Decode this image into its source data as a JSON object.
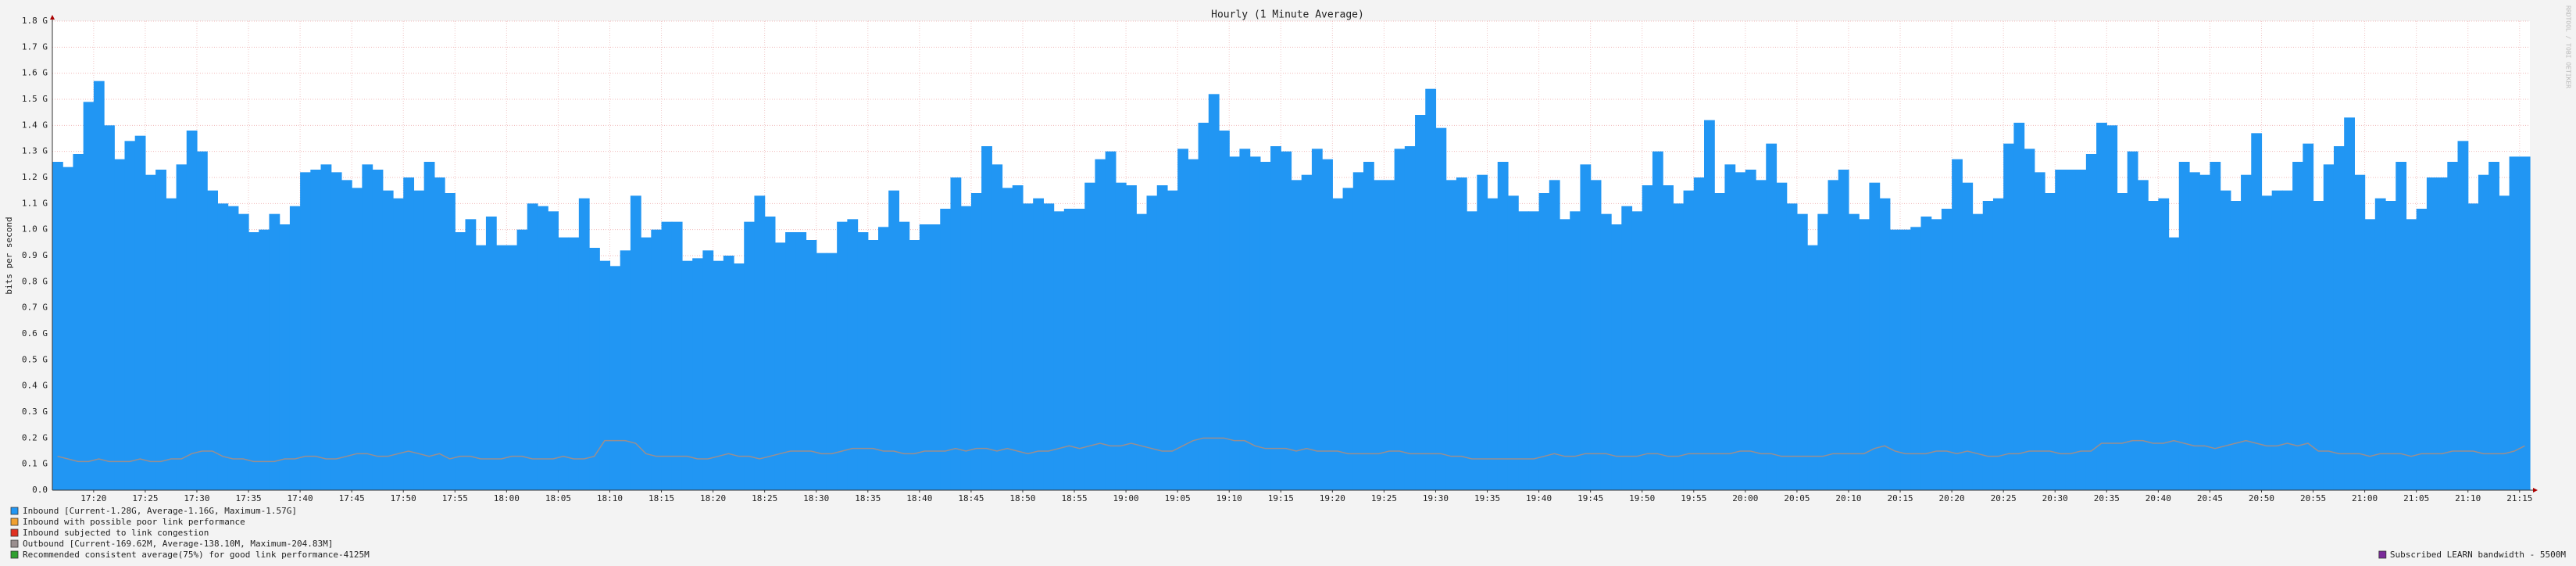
{
  "chart_data": {
    "type": "step-area",
    "title": "Hourly (1 Minute Average)",
    "y_label": "bits per second",
    "watermark": "RRDTOOL / TOBI OETIKER",
    "x": [
      "17:16",
      "17:17",
      "17:18",
      "17:19",
      "17:20",
      "17:21",
      "17:22",
      "17:23",
      "17:24",
      "17:25",
      "17:26",
      "17:27",
      "17:28",
      "17:29",
      "17:30",
      "17:31",
      "17:32",
      "17:33",
      "17:34",
      "17:35",
      "17:36",
      "17:37",
      "17:38",
      "17:39",
      "17:40",
      "17:41",
      "17:42",
      "17:43",
      "17:44",
      "17:45",
      "17:46",
      "17:47",
      "17:48",
      "17:49",
      "17:50",
      "17:51",
      "17:52",
      "17:53",
      "17:54",
      "17:55",
      "17:56",
      "17:57",
      "17:58",
      "17:59",
      "18:00",
      "18:01",
      "18:02",
      "18:03",
      "18:04",
      "18:05",
      "18:06",
      "18:07",
      "18:08",
      "18:09",
      "18:10",
      "18:11",
      "18:12",
      "18:13",
      "18:14",
      "18:15",
      "18:16",
      "18:17",
      "18:18",
      "18:19",
      "18:20",
      "18:21",
      "18:22",
      "18:23",
      "18:24",
      "18:25",
      "18:26",
      "18:27",
      "18:28",
      "18:29",
      "18:30",
      "18:31",
      "18:32",
      "18:33",
      "18:34",
      "18:35",
      "18:36",
      "18:37",
      "18:38",
      "18:39",
      "18:40",
      "18:41",
      "18:42",
      "18:43",
      "18:44",
      "18:45",
      "18:46",
      "18:47",
      "18:48",
      "18:49",
      "18:50",
      "18:51",
      "18:52",
      "18:53",
      "18:54",
      "18:55",
      "18:56",
      "18:57",
      "18:58",
      "18:59",
      "19:00",
      "19:01",
      "19:02",
      "19:03",
      "19:04",
      "19:05",
      "19:06",
      "19:07",
      "19:08",
      "19:09",
      "19:10",
      "19:11",
      "19:12",
      "19:13",
      "19:14",
      "19:15",
      "19:16",
      "19:17",
      "19:18",
      "19:19",
      "19:20",
      "19:21",
      "19:22",
      "19:23",
      "19:24",
      "19:25",
      "19:26",
      "19:27",
      "19:28",
      "19:29",
      "19:30",
      "19:31",
      "19:32",
      "19:33",
      "19:34",
      "19:35",
      "19:36",
      "19:37",
      "19:38",
      "19:39",
      "19:40",
      "19:41",
      "19:42",
      "19:43",
      "19:44",
      "19:45",
      "19:46",
      "19:47",
      "19:48",
      "19:49",
      "19:50",
      "19:51",
      "19:52",
      "19:53",
      "19:54",
      "19:55",
      "19:56",
      "19:57",
      "19:58",
      "19:59",
      "20:00",
      "20:01",
      "20:02",
      "20:03",
      "20:04",
      "20:05",
      "20:06",
      "20:07",
      "20:08",
      "20:09",
      "20:10",
      "20:11",
      "20:12",
      "20:13",
      "20:14",
      "20:15",
      "20:16",
      "20:17",
      "20:18",
      "20:19",
      "20:20",
      "20:21",
      "20:22",
      "20:23",
      "20:24",
      "20:25",
      "20:26",
      "20:27",
      "20:28",
      "20:29",
      "20:30",
      "20:31",
      "20:32",
      "20:33",
      "20:34",
      "20:35",
      "20:36",
      "20:37",
      "20:38",
      "20:39",
      "20:40",
      "20:41",
      "20:42",
      "20:43",
      "20:44",
      "20:45",
      "20:46",
      "20:47",
      "20:48",
      "20:49",
      "20:50",
      "20:51",
      "20:52",
      "20:53",
      "20:54",
      "20:55",
      "20:56",
      "20:57",
      "20:58",
      "20:59",
      "21:00",
      "21:01",
      "21:02",
      "21:03",
      "21:04",
      "21:05",
      "21:06",
      "21:07",
      "21:08",
      "21:09",
      "21:10",
      "21:11",
      "21:12",
      "21:13",
      "21:14",
      "21:15"
    ],
    "series": [
      {
        "name": "Inbound  [Current-1.28G,  Average-1.16G,  Maximum-1.57G]",
        "color": "#2196f3",
        "kind": "area",
        "values": [
          1.26,
          1.24,
          1.29,
          1.49,
          1.57,
          1.4,
          1.27,
          1.34,
          1.36,
          1.21,
          1.23,
          1.12,
          1.25,
          1.38,
          1.3,
          1.15,
          1.1,
          1.09,
          1.06,
          0.99,
          1.0,
          1.06,
          1.02,
          1.09,
          1.22,
          1.23,
          1.25,
          1.22,
          1.19,
          1.16,
          1.25,
          1.23,
          1.15,
          1.12,
          1.2,
          1.15,
          1.26,
          1.2,
          1.14,
          0.99,
          1.04,
          0.94,
          1.05,
          0.94,
          0.94,
          1.0,
          1.1,
          1.09,
          1.07,
          0.97,
          0.97,
          1.12,
          0.93,
          0.88,
          0.86,
          0.92,
          1.13,
          0.97,
          1.0,
          1.03,
          1.03,
          0.88,
          0.89,
          0.92,
          0.88,
          0.9,
          0.87,
          1.03,
          1.13,
          1.05,
          0.95,
          0.99,
          0.99,
          0.96,
          0.91,
          0.91,
          1.03,
          1.04,
          0.99,
          0.96,
          1.01,
          1.15,
          1.03,
          0.96,
          1.02,
          1.02,
          1.08,
          1.2,
          1.09,
          1.14,
          1.32,
          1.25,
          1.16,
          1.17,
          1.1,
          1.12,
          1.1,
          1.07,
          1.08,
          1.08,
          1.18,
          1.27,
          1.3,
          1.18,
          1.17,
          1.06,
          1.13,
          1.17,
          1.15,
          1.31,
          1.27,
          1.41,
          1.52,
          1.38,
          1.28,
          1.31,
          1.28,
          1.26,
          1.32,
          1.3,
          1.19,
          1.21,
          1.31,
          1.27,
          1.12,
          1.16,
          1.22,
          1.26,
          1.19,
          1.19,
          1.31,
          1.32,
          1.44,
          1.54,
          1.39,
          1.19,
          1.2,
          1.07,
          1.21,
          1.12,
          1.26,
          1.13,
          1.07,
          1.07,
          1.14,
          1.19,
          1.04,
          1.07,
          1.25,
          1.19,
          1.06,
          1.02,
          1.09,
          1.07,
          1.17,
          1.3,
          1.17,
          1.1,
          1.15,
          1.2,
          1.42,
          1.14,
          1.25,
          1.22,
          1.23,
          1.19,
          1.33,
          1.18,
          1.1,
          1.06,
          0.94,
          1.06,
          1.19,
          1.23,
          1.06,
          1.04,
          1.18,
          1.12,
          1.0,
          1.0,
          1.01,
          1.05,
          1.04,
          1.08,
          1.27,
          1.18,
          1.06,
          1.11,
          1.12,
          1.33,
          1.41,
          1.31,
          1.22,
          1.14,
          1.23,
          1.23,
          1.23,
          1.29,
          1.41,
          1.4,
          1.14,
          1.3,
          1.19,
          1.11,
          1.12,
          0.97,
          1.26,
          1.22,
          1.21,
          1.26,
          1.15,
          1.11,
          1.21,
          1.37,
          1.13,
          1.15,
          1.15,
          1.26,
          1.33,
          1.11,
          1.25,
          1.32,
          1.43,
          1.21,
          1.04,
          1.12,
          1.11,
          1.26,
          1.04,
          1.08,
          1.2,
          1.2,
          1.26,
          1.34,
          1.1,
          1.21,
          1.26,
          1.13,
          1.28,
          1.28
        ]
      },
      {
        "name": "Outbound  [Current-169.62M,  Average-138.10M,  Maximum-204.83M]",
        "color": "#9a8f8f",
        "kind": "line",
        "values": [
          0.13,
          0.12,
          0.11,
          0.11,
          0.12,
          0.11,
          0.11,
          0.11,
          0.12,
          0.11,
          0.11,
          0.12,
          0.12,
          0.14,
          0.15,
          0.15,
          0.13,
          0.12,
          0.12,
          0.11,
          0.11,
          0.11,
          0.12,
          0.12,
          0.13,
          0.13,
          0.12,
          0.12,
          0.13,
          0.14,
          0.14,
          0.13,
          0.13,
          0.14,
          0.15,
          0.14,
          0.13,
          0.14,
          0.12,
          0.13,
          0.13,
          0.12,
          0.12,
          0.12,
          0.13,
          0.13,
          0.12,
          0.12,
          0.12,
          0.13,
          0.12,
          0.12,
          0.13,
          0.19,
          0.19,
          0.19,
          0.18,
          0.14,
          0.13,
          0.13,
          0.13,
          0.13,
          0.12,
          0.12,
          0.13,
          0.14,
          0.13,
          0.13,
          0.12,
          0.13,
          0.14,
          0.15,
          0.15,
          0.15,
          0.14,
          0.14,
          0.15,
          0.16,
          0.16,
          0.16,
          0.15,
          0.15,
          0.14,
          0.14,
          0.15,
          0.15,
          0.15,
          0.16,
          0.15,
          0.16,
          0.16,
          0.15,
          0.16,
          0.15,
          0.14,
          0.15,
          0.15,
          0.16,
          0.17,
          0.16,
          0.17,
          0.18,
          0.17,
          0.17,
          0.18,
          0.17,
          0.16,
          0.15,
          0.15,
          0.17,
          0.19,
          0.2,
          0.2,
          0.2,
          0.19,
          0.19,
          0.17,
          0.16,
          0.16,
          0.16,
          0.15,
          0.16,
          0.15,
          0.15,
          0.15,
          0.14,
          0.14,
          0.14,
          0.14,
          0.15,
          0.15,
          0.14,
          0.14,
          0.14,
          0.14,
          0.13,
          0.13,
          0.12,
          0.12,
          0.12,
          0.12,
          0.12,
          0.12,
          0.12,
          0.13,
          0.14,
          0.13,
          0.13,
          0.14,
          0.14,
          0.14,
          0.13,
          0.13,
          0.13,
          0.14,
          0.14,
          0.13,
          0.13,
          0.14,
          0.14,
          0.14,
          0.14,
          0.14,
          0.15,
          0.15,
          0.14,
          0.14,
          0.13,
          0.13,
          0.13,
          0.13,
          0.13,
          0.14,
          0.14,
          0.14,
          0.14,
          0.16,
          0.17,
          0.15,
          0.14,
          0.14,
          0.14,
          0.15,
          0.15,
          0.14,
          0.15,
          0.14,
          0.13,
          0.13,
          0.14,
          0.14,
          0.15,
          0.15,
          0.15,
          0.14,
          0.14,
          0.15,
          0.15,
          0.18,
          0.18,
          0.18,
          0.19,
          0.19,
          0.18,
          0.18,
          0.19,
          0.18,
          0.17,
          0.17,
          0.16,
          0.17,
          0.18,
          0.19,
          0.18,
          0.17,
          0.17,
          0.18,
          0.17,
          0.18,
          0.15,
          0.15,
          0.14,
          0.14,
          0.14,
          0.13,
          0.14,
          0.14,
          0.14,
          0.13,
          0.14,
          0.14,
          0.14,
          0.15,
          0.15,
          0.15,
          0.14,
          0.14,
          0.14,
          0.15,
          0.17
        ]
      }
    ],
    "legend_extra": [
      {
        "label": "Inbound with possible poor link performance",
        "color": "#f0a030",
        "after": 0
      },
      {
        "label": "Inbound subjected to link congestion",
        "color": "#e03020",
        "after": 0
      },
      {
        "label": "Recommended consistent average(75%) for good link performance-4125M",
        "color": "#30a030",
        "after": 1
      },
      {
        "label": "Subscribed LEARN bandwidth - 5500M",
        "color": "#7a2a9a",
        "after": "right"
      }
    ],
    "ylim": [
      0,
      1.8
    ],
    "yticks": [
      {
        "value": 0,
        "label": "0.0"
      },
      {
        "value": 0.1,
        "label": "0.1 G"
      },
      {
        "value": 0.2,
        "label": "0.2 G"
      },
      {
        "value": 0.3,
        "label": "0.3 G"
      },
      {
        "value": 0.4,
        "label": "0.4 G"
      },
      {
        "value": 0.5,
        "label": "0.5 G"
      },
      {
        "value": 0.6,
        "label": "0.6 G"
      },
      {
        "value": 0.7,
        "label": "0.7 G"
      },
      {
        "value": 0.8,
        "label": "0.8 G"
      },
      {
        "value": 0.9,
        "label": "0.9 G"
      },
      {
        "value": 1.0,
        "label": "1.0 G"
      },
      {
        "value": 1.1,
        "label": "1.1 G"
      },
      {
        "value": 1.2,
        "label": "1.2 G"
      },
      {
        "value": 1.3,
        "label": "1.3 G"
      },
      {
        "value": 1.4,
        "label": "1.4 G"
      },
      {
        "value": 1.5,
        "label": "1.5 G"
      },
      {
        "value": 1.6,
        "label": "1.6 G"
      },
      {
        "value": 1.7,
        "label": "1.7 G"
      },
      {
        "value": 1.8,
        "label": "1.8 G"
      }
    ],
    "xticks": [
      "17:20",
      "17:25",
      "17:30",
      "17:35",
      "17:40",
      "17:45",
      "17:50",
      "17:55",
      "18:00",
      "18:05",
      "18:10",
      "18:15",
      "18:20",
      "18:25",
      "18:30",
      "18:35",
      "18:40",
      "18:45",
      "18:50",
      "18:55",
      "19:00",
      "19:05",
      "19:10",
      "19:15",
      "19:20",
      "19:25",
      "19:30",
      "19:35",
      "19:40",
      "19:45",
      "19:50",
      "19:55",
      "20:00",
      "20:05",
      "20:10",
      "20:15",
      "20:20",
      "20:25",
      "20:30",
      "20:35",
      "20:40",
      "20:45",
      "20:50",
      "20:55",
      "21:00",
      "21:05",
      "21:10",
      "21:15"
    ],
    "grid": true
  }
}
